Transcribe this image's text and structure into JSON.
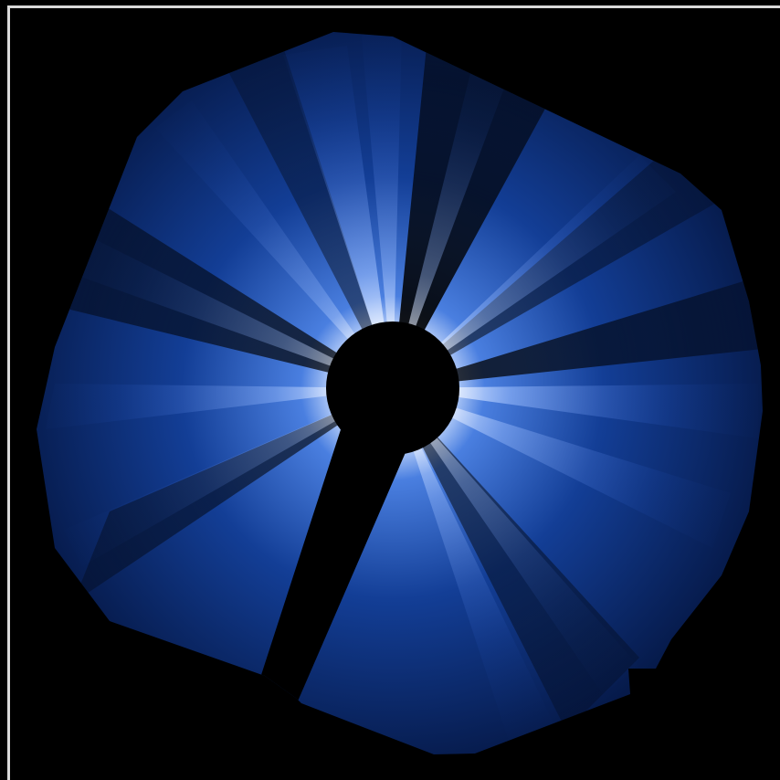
{
  "image": {
    "subject": "coronagraph-view",
    "colors": {
      "background": "#000000",
      "frame": "#d9d9d9",
      "corona_bright": "#ffffff",
      "corona_mid": "#4a7fe0",
      "corona_dark": "#0a2a6e",
      "occulter": "#000000"
    }
  }
}
